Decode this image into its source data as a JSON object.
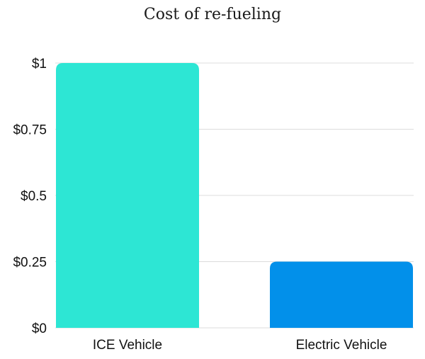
{
  "chart_data": {
    "type": "bar",
    "title": "Cost of re-fueling",
    "xlabel": "",
    "ylabel": "",
    "categories": [
      "ICE Vehicle",
      "Electric Vehicle"
    ],
    "values": [
      1.0,
      0.25
    ],
    "ylim": [
      0,
      1
    ],
    "yticks": [
      0,
      0.25,
      0.5,
      0.75,
      1
    ],
    "ytick_labels": [
      "$0",
      "$0.25",
      "$0.5",
      "$0.75",
      "$1"
    ],
    "grid": true,
    "legend": "none",
    "colors": [
      "#2de6d4",
      "#0290ea"
    ]
  }
}
